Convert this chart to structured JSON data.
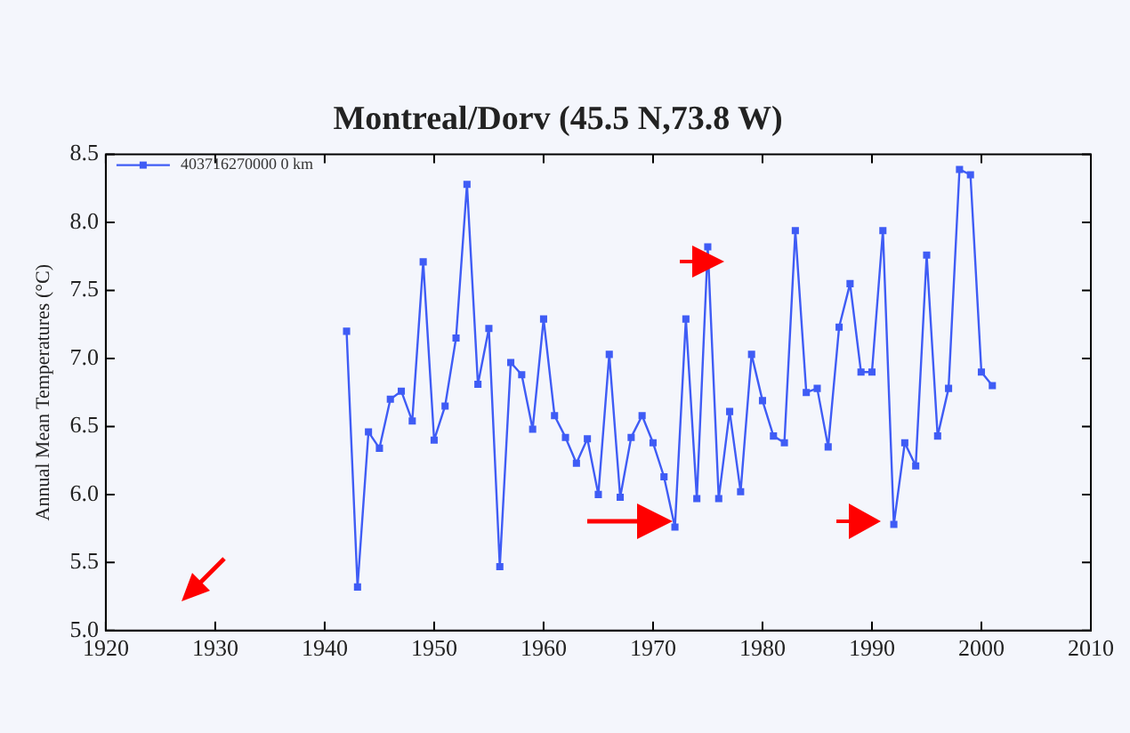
{
  "chart_data": {
    "type": "line",
    "title": "Montreal/Dorv (45.5 N,73.8 W)",
    "ylabel": "Annual Mean Temperatures (°C)",
    "x": [
      1942,
      1943,
      1944,
      1945,
      1946,
      1947,
      1948,
      1949,
      1950,
      1951,
      1952,
      1953,
      1954,
      1955,
      1956,
      1957,
      1958,
      1959,
      1960,
      1961,
      1962,
      1963,
      1964,
      1965,
      1966,
      1967,
      1968,
      1969,
      1970,
      1971,
      1972,
      1973,
      1974,
      1975,
      1976,
      1977,
      1978,
      1979,
      1980,
      1981,
      1982,
      1983,
      1984,
      1985,
      1986,
      1987,
      1988,
      1989,
      1990,
      1991,
      1992,
      1993,
      1994,
      1995,
      1996,
      1997,
      1998,
      1999,
      2000,
      2001
    ],
    "series": [
      {
        "name": "403716270000 0 km",
        "color": "#3f5cf5",
        "values": [
          7.2,
          5.32,
          6.46,
          6.34,
          6.7,
          6.76,
          6.54,
          7.71,
          6.4,
          6.65,
          7.15,
          8.28,
          6.81,
          7.22,
          5.47,
          6.97,
          6.88,
          6.48,
          7.29,
          6.58,
          6.42,
          6.23,
          6.41,
          6.0,
          7.03,
          5.98,
          6.42,
          6.58,
          6.38,
          6.13,
          5.76,
          7.29,
          5.97,
          7.82,
          5.97,
          6.61,
          6.02,
          7.03,
          6.69,
          6.43,
          6.38,
          7.94,
          6.75,
          6.78,
          6.35,
          7.23,
          7.55,
          6.9,
          6.9,
          7.94,
          5.78,
          6.38,
          6.21,
          7.76,
          6.43,
          6.78,
          8.39,
          8.35,
          6.9,
          6.8
        ]
      }
    ],
    "xlim": [
      1920,
      2010
    ],
    "xticks": [
      1920,
      1930,
      1940,
      1950,
      1960,
      1970,
      1980,
      1990,
      2000,
      2010
    ],
    "ylim": [
      5.0,
      8.5
    ],
    "yticks": [
      {
        "value": 5.0,
        "label": "5.0"
      },
      5.5,
      {
        "value": 6.0,
        "label": "6.0"
      },
      6.5,
      {
        "value": 7.0,
        "label": "7.0"
      },
      7.5,
      {
        "value": 8.0,
        "label": "8.0"
      },
      8.5
    ],
    "grid": false,
    "legend": "top left",
    "marker": "square",
    "line_style": "solid"
  }
}
